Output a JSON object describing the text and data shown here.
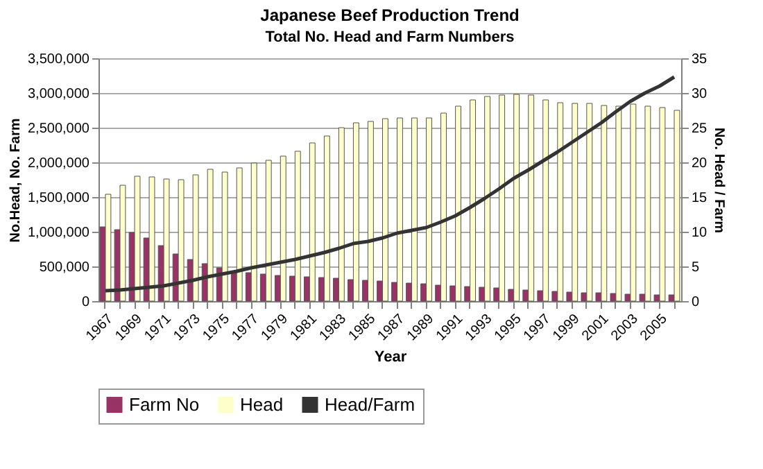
{
  "chart_data": {
    "type": "bar",
    "title": "Japanese Beef Production Trend",
    "subtitle": "Total No. Head and Farm Numbers",
    "xlabel": "Year",
    "ylabel": "No.Head, No. Farm",
    "y2label": "No. Head / Farm",
    "categories": [
      "1967",
      null,
      "1969",
      null,
      "1971",
      null,
      "1973",
      null,
      "1975",
      null,
      "1977",
      null,
      "1979",
      null,
      "1981",
      null,
      "1983",
      null,
      "1985",
      null,
      "1987",
      null,
      "1989",
      null,
      "1991",
      null,
      "1993",
      null,
      "1995",
      null,
      "1997",
      null,
      "1999",
      null,
      "2001",
      null,
      "2003",
      null,
      "2005",
      null
    ],
    "series": [
      {
        "name": "Farm No",
        "type": "bar",
        "color": "#993366",
        "values": [
          1070000,
          1030000,
          990000,
          910000,
          800000,
          680000,
          600000,
          540000,
          480000,
          430000,
          410000,
          390000,
          370000,
          360000,
          350000,
          340000,
          330000,
          310000,
          300000,
          290000,
          270000,
          260000,
          250000,
          230000,
          220000,
          210000,
          200000,
          190000,
          170000,
          160000,
          150000,
          140000,
          130000,
          120000,
          120000,
          110000,
          100000,
          100000,
          90000,
          90000
        ]
      },
      {
        "name": "Head",
        "type": "bar",
        "color": "#ffffcc",
        "values": [
          1540000,
          1670000,
          1800000,
          1790000,
          1760000,
          1750000,
          1820000,
          1900000,
          1860000,
          1920000,
          1990000,
          2030000,
          2090000,
          2160000,
          2280000,
          2380000,
          2500000,
          2570000,
          2590000,
          2630000,
          2640000,
          2640000,
          2640000,
          2710000,
          2810000,
          2900000,
          2950000,
          2970000,
          2980000,
          2970000,
          2900000,
          2860000,
          2850000,
          2850000,
          2820000,
          2810000,
          2840000,
          2810000,
          2790000,
          2750000
        ]
      },
      {
        "name": "Head/Farm",
        "type": "line",
        "axis": "y2",
        "color": "#333333",
        "values": [
          1.5,
          1.6,
          1.8,
          2.0,
          2.2,
          2.6,
          3.0,
          3.5,
          3.9,
          4.3,
          4.8,
          5.2,
          5.6,
          6.0,
          6.5,
          7.0,
          7.6,
          8.3,
          8.6,
          9.1,
          9.8,
          10.2,
          10.6,
          11.4,
          12.3,
          13.5,
          14.8,
          16.2,
          17.7,
          18.9,
          20.2,
          21.5,
          22.9,
          24.3,
          25.7,
          27.3,
          28.8,
          30.0,
          31.0,
          32.3
        ]
      }
    ],
    "ylim": [
      0,
      3500000
    ],
    "yticks": [
      0,
      {
        "value": 500000,
        "label": "500,000"
      },
      {
        "value": 1000000,
        "label": "1,000,000"
      },
      {
        "value": 1500000,
        "label": "1,500,000"
      },
      {
        "value": 2000000,
        "label": "2,000,000"
      },
      {
        "value": 2500000,
        "label": "2,500,000"
      },
      {
        "value": 3000000,
        "label": "3,000,000"
      },
      {
        "value": 3500000,
        "label": "3,500,000"
      }
    ],
    "y2lim": [
      0,
      35
    ],
    "y2ticks": [
      0,
      5,
      10,
      15,
      20,
      25,
      30,
      35
    ],
    "grid": "y",
    "legend": "bottom",
    "marker": "none",
    "line_style": "solid"
  }
}
